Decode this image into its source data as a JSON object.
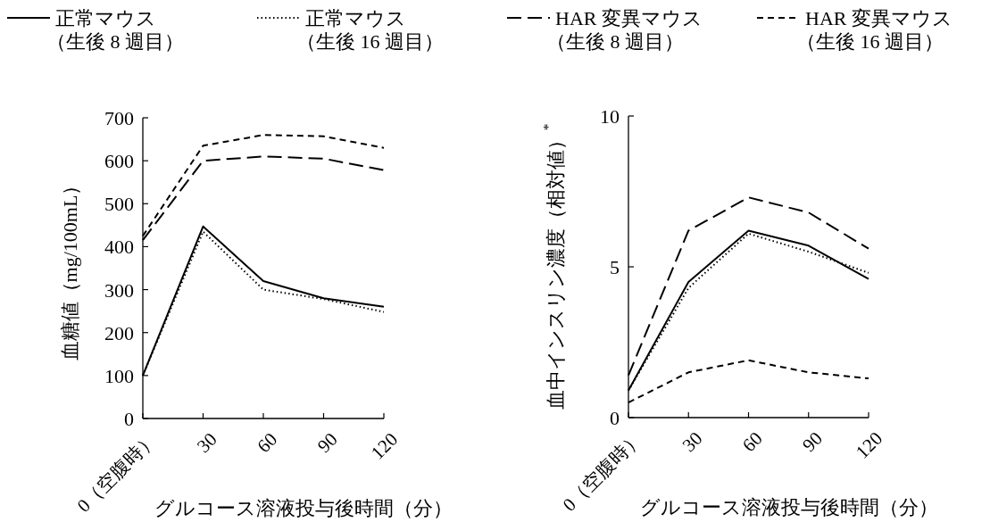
{
  "chart_data": [
    {
      "type": "line",
      "legend": "top",
      "grid": false,
      "marker": "none",
      "x": [
        0,
        30,
        60,
        90,
        120
      ],
      "xlim": [
        0,
        120
      ],
      "xticks": [
        {
          "value": 0,
          "label": "0（空腹時）"
        },
        30,
        60,
        90,
        120
      ],
      "ylim": [
        0,
        700
      ],
      "yticks": [
        0,
        100,
        200,
        300,
        400,
        500,
        600,
        700
      ],
      "xlabel": "グルコース溶液投与後時間（分）",
      "ylabel": "血糖値（mg/100mL）",
      "series": [
        {
          "name": "正常マウス（生後 8 週目）",
          "color": "#000000",
          "line_style": "solid",
          "values": [
            100,
            447,
            320,
            280,
            260
          ]
        },
        {
          "name": "正常マウス（生後 16 週目）",
          "color": "#000000",
          "line_style": "dotted",
          "values": [
            100,
            435,
            300,
            278,
            248
          ]
        },
        {
          "name": "HAR 変異マウス（生後 8 週目）",
          "color": "#000000",
          "line_style": "dashed",
          "values": [
            415,
            600,
            610,
            605,
            578
          ]
        },
        {
          "name": "HAR 変異マウス（生後 16 週目）",
          "color": "#000000",
          "line_style": "dashed",
          "values": [
            425,
            635,
            660,
            657,
            630
          ]
        }
      ]
    },
    {
      "type": "line",
      "grid": false,
      "marker": "none",
      "x": [
        0,
        30,
        60,
        90,
        120
      ],
      "xlim": [
        0,
        120
      ],
      "xticks": [
        {
          "value": 0,
          "label": "0（空腹時）"
        },
        30,
        60,
        90,
        120
      ],
      "ylim": [
        0,
        10
      ],
      "yticks": [
        0,
        5,
        10
      ],
      "xlabel": "グルコース溶液投与後時間（分）",
      "ylabel": "血中インスリン濃度（相対値）$^{*}$",
      "series": [
        {
          "color": "#000000",
          "line_style": "solid",
          "values": [
            0.9,
            4.5,
            6.2,
            5.7,
            4.6
          ]
        },
        {
          "color": "#000000",
          "line_style": "dotted",
          "values": [
            0.9,
            4.3,
            6.1,
            5.5,
            4.8
          ]
        },
        {
          "color": "#000000",
          "line_style": "dashed",
          "values": [
            1.4,
            6.2,
            7.3,
            6.8,
            5.6
          ]
        },
        {
          "color": "#000000",
          "line_style": "dashed",
          "values": [
            0.5,
            1.5,
            1.9,
            1.5,
            1.3
          ]
        }
      ]
    }
  ]
}
